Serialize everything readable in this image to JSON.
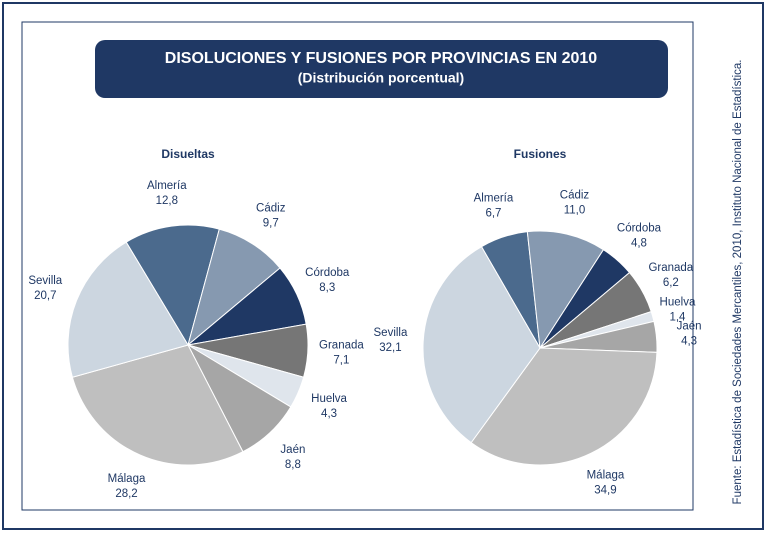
{
  "title": "DISOLUCIONES Y FUSIONES POR PROVINCIAS EN 2010",
  "subtitle": "(Distribución porcentual)",
  "source": "Fuente: Estadística de Sociedades Mercantiles, 2010, Instituto Nacional de Estadística.",
  "chart_data": [
    {
      "type": "pie",
      "title": "Disueltas",
      "categories": [
        "Almería",
        "Cádiz",
        "Córdoba",
        "Granada",
        "Huelva",
        "Jaén",
        "Málaga",
        "Sevilla"
      ],
      "values": [
        12.8,
        9.7,
        8.3,
        7.1,
        4.3,
        8.8,
        28.2,
        20.7
      ],
      "value_labels": [
        "12,8",
        "9,7",
        "8,3",
        "7,1",
        "4,3",
        "8,8",
        "28,2",
        "20,7"
      ],
      "colors": [
        "#4b6a8d",
        "#8699b0",
        "#1f3864",
        "#767676",
        "#dfe5ec",
        "#a6a6a6",
        "#bfbfbf",
        "#ccd6e0"
      ]
    },
    {
      "type": "pie",
      "title": "Fusiones",
      "categories": [
        "Almería",
        "Cádiz",
        "Córdoba",
        "Granada",
        "Huelva",
        "Jaén",
        "Málaga",
        "Sevilla"
      ],
      "values": [
        6.7,
        11.0,
        4.8,
        6.2,
        1.4,
        4.3,
        34.9,
        32.1
      ],
      "value_labels": [
        "6,7",
        "11,0",
        "4,8",
        "6,2",
        "1,4",
        "4,3",
        "34,9",
        "32,1"
      ],
      "colors": [
        "#4b6a8d",
        "#8699b0",
        "#1f3864",
        "#767676",
        "#dfe5ec",
        "#a6a6a6",
        "#bfbfbf",
        "#ccd6e0"
      ]
    }
  ]
}
